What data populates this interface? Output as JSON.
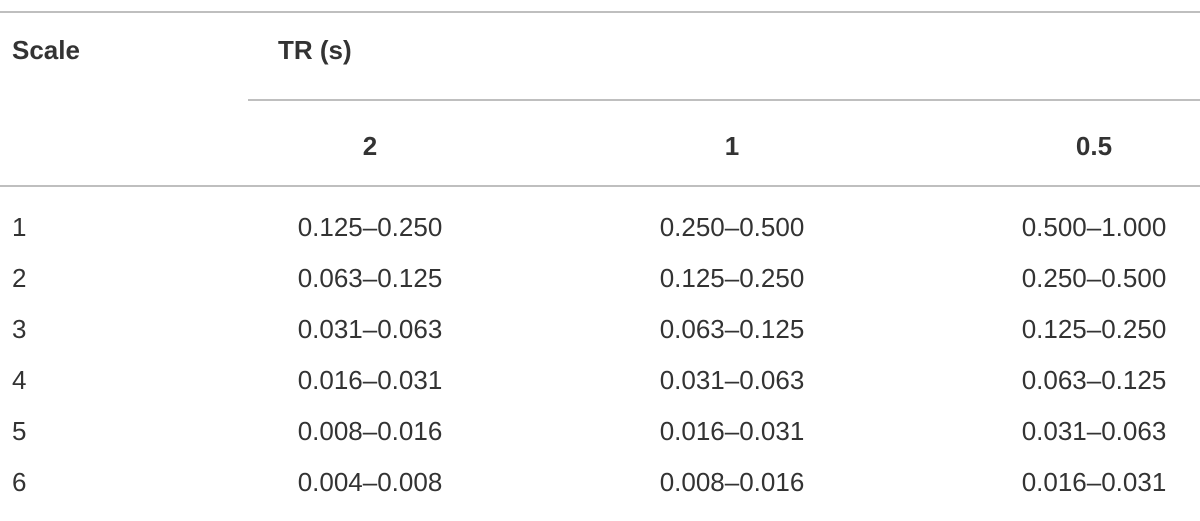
{
  "table": {
    "header": [
      "Scale",
      "TR (s)"
    ],
    "subheader": [
      "2",
      "1",
      "0.5"
    ],
    "rows": [
      [
        "1",
        "0.125–0.250",
        "0.250–0.500",
        "0.500–1.000"
      ],
      [
        "2",
        "0.063–0.125",
        "0.125–0.250",
        "0.250–0.500"
      ],
      [
        "3",
        "0.031–0.063",
        "0.063–0.125",
        "0.125–0.250"
      ],
      [
        "4",
        "0.016–0.031",
        "0.031–0.063",
        "0.063–0.125"
      ],
      [
        "5",
        "0.008–0.016",
        "0.016–0.031",
        "0.031–0.063"
      ],
      [
        "6",
        "0.004–0.008",
        "0.008–0.016",
        "0.016–0.031"
      ]
    ]
  }
}
